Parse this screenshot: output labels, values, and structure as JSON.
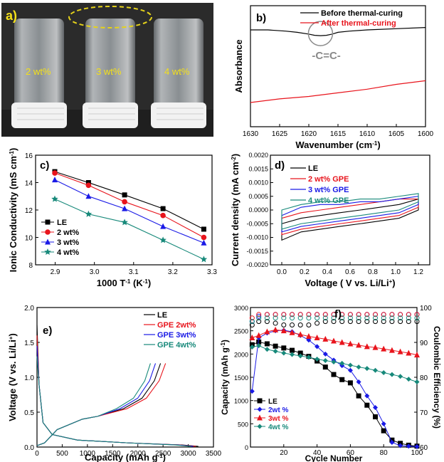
{
  "panel_a": {
    "label": "a)",
    "vial_labels": [
      "2 wt%",
      "3 wt%",
      "4 wt%"
    ]
  },
  "chart_data": [
    {
      "panel": "b)",
      "type": "line",
      "xlabel": "Wavenumber (cm",
      "xlabel_sup": "-1",
      "xlabel_end": ")",
      "ylabel": "Absorbance",
      "xlim": [
        1630,
        1600
      ],
      "xticks": [
        "1630",
        "1625",
        "1620",
        "1615",
        "1610",
        "1605",
        "1600"
      ],
      "annotation": "-C=C-",
      "series": [
        {
          "name": "Before thermal-curing",
          "color": "#000000",
          "x": [
            1630,
            1627,
            1624,
            1622,
            1620,
            1619,
            1618,
            1617,
            1616,
            1615,
            1613,
            1610,
            1605,
            1600
          ],
          "y": [
            0.8,
            0.8,
            0.79,
            0.78,
            0.765,
            0.755,
            0.752,
            0.755,
            0.765,
            0.78,
            0.79,
            0.8,
            0.81,
            0.82
          ]
        },
        {
          "name": "After thermal-curing",
          "color": "#e8141c",
          "x": [
            1630,
            1625,
            1620,
            1615,
            1610,
            1605,
            1600
          ],
          "y": [
            0.2,
            0.23,
            0.25,
            0.28,
            0.31,
            0.35,
            0.38
          ]
        }
      ]
    },
    {
      "panel": "c)",
      "type": "line",
      "xlabel": "1000 T",
      "xlabel_sup": "-1",
      "xlabel_end": " (K",
      "xlabel_sup2": "-1",
      "xlabel_end2": ")",
      "ylabel": "Ionic Conductivity (mS cm",
      "ylabel_sup": "-1",
      "ylabel_end": ")",
      "xlim": [
        2.85,
        3.3
      ],
      "ylim": [
        8,
        16
      ],
      "xticks": [
        "2.9",
        "3.0",
        "3.1",
        "3.2",
        "3.3"
      ],
      "yticks": [
        "8",
        "10",
        "12",
        "14",
        "16"
      ],
      "x": [
        2.899,
        2.985,
        3.077,
        3.175,
        3.279
      ],
      "series": [
        {
          "name": "LE",
          "color": "#000000",
          "marker": "square",
          "values": [
            14.8,
            14.0,
            13.1,
            12.1,
            10.6
          ]
        },
        {
          "name": "2 wt%",
          "color": "#e8141c",
          "marker": "circle",
          "values": [
            14.7,
            13.8,
            12.6,
            11.6,
            10.0
          ]
        },
        {
          "name": "3 wt%",
          "color": "#1a1ae6",
          "marker": "triangle",
          "values": [
            14.2,
            13.0,
            12.1,
            10.8,
            9.6
          ]
        },
        {
          "name": "4 wt%",
          "color": "#17897a",
          "marker": "star",
          "values": [
            12.8,
            11.7,
            11.1,
            9.8,
            8.4
          ]
        }
      ]
    },
    {
      "panel": "d)",
      "type": "line",
      "xlabel": "Voltage ( V vs. Li/Li",
      "xlabel_sup": "+",
      "xlabel_end": ")",
      "ylabel": "Current density (mA cm",
      "ylabel_sup": "-2",
      "ylabel_end": ")",
      "xlim": [
        -0.1,
        1.3
      ],
      "ylim": [
        -0.002,
        0.002
      ],
      "xticks": [
        "0.0",
        "0.2",
        "0.4",
        "0.6",
        "0.8",
        "1.0",
        "1.2"
      ],
      "yticks": [
        "-0.0020",
        "-0.0015",
        "-0.0010",
        "-0.0005",
        "0.0000",
        "0.0005",
        "0.0010",
        "0.0015",
        "0.0020"
      ],
      "series": [
        {
          "name": "LE",
          "color": "#000000",
          "top": [
            -0.0005,
            -0.0003,
            -0.0002,
            -0.0001,
            0.0,
            0.0001,
            0.0002,
            0.0004
          ],
          "bot": [
            -0.0011,
            -0.0008,
            -0.0007,
            -0.0006,
            -0.0005,
            -0.0004,
            -0.0003,
            0.0
          ]
        },
        {
          "name": "2 wt% GPE",
          "color": "#e8141c",
          "top": [
            -0.0003,
            -0.0001,
            0.0,
            0.0001,
            0.0002,
            0.0003,
            0.0004,
            0.0004
          ],
          "bot": [
            -0.0009,
            -0.0007,
            -0.0006,
            -0.0005,
            -0.0004,
            -0.0003,
            -0.0002,
            0.0001
          ]
        },
        {
          "name": "3 wt% GPE",
          "color": "#1a1ae6",
          "top": [
            -0.0002,
            0.0001,
            0.0002,
            0.0002,
            0.0003,
            0.0003,
            0.0004,
            0.0005
          ],
          "bot": [
            -0.0008,
            -0.0006,
            -0.0005,
            -0.0004,
            -0.0003,
            -0.0002,
            -0.0001,
            0.0002
          ]
        },
        {
          "name": "4 wt% GPE",
          "color": "#17897a",
          "top": [
            0.0,
            0.0002,
            0.0003,
            0.0003,
            0.0004,
            0.0004,
            0.0005,
            0.0006
          ],
          "bot": [
            -0.0007,
            -0.0005,
            -0.0004,
            -0.0003,
            -0.0002,
            -0.0001,
            0.0,
            0.0003
          ]
        }
      ],
      "x_samples": [
        0.0,
        0.17,
        0.34,
        0.51,
        0.69,
        0.86,
        1.03,
        1.2
      ]
    },
    {
      "panel": "e)",
      "type": "line",
      "xlabel": "Capacity (mAh g",
      "xlabel_sup": "-1",
      "xlabel_end": ")",
      "ylabel": "Voltage (V vs. Li/Li",
      "ylabel_sup": "+",
      "ylabel_end": ")",
      "xlim": [
        0,
        3500
      ],
      "ylim": [
        0.0,
        2.0
      ],
      "xticks": [
        "0",
        "500",
        "1000",
        "1500",
        "2000",
        "2500",
        "3000",
        "3500"
      ],
      "yticks": [
        "0.0",
        "0.5",
        "1.0",
        "1.5",
        "2.0"
      ],
      "series": [
        {
          "name": "LE",
          "color": "#000000",
          "charge_end": 2450,
          "discharge_end": 3200
        },
        {
          "name": "GPE 2wt%",
          "color": "#e8141c",
          "charge_end": 2550,
          "discharge_end": 3150
        },
        {
          "name": "GPE 3wt%",
          "color": "#1a1ae6",
          "charge_end": 2350,
          "discharge_end": 3100
        },
        {
          "name": "GPE 4wt%",
          "color": "#17897a",
          "charge_end": 2250,
          "discharge_end": 3050
        }
      ]
    },
    {
      "panel": "f)",
      "type": "scatter",
      "xlabel": "Cycle Number",
      "ylabel": "Capacity (mAh g",
      "ylabel_sup": "-1",
      "ylabel_end": ")",
      "y2label": "Coulombic Efficiency (%)",
      "xlim": [
        0,
        100
      ],
      "ylim": [
        0,
        3000
      ],
      "y2lim": [
        60,
        100
      ],
      "xticks": [
        "20",
        "40",
        "60",
        "80",
        "100"
      ],
      "yticks": [
        "0",
        "500",
        "1000",
        "1500",
        "2000",
        "2500",
        "3000"
      ],
      "y2ticks": [
        "60",
        "70",
        "80",
        "90",
        "100"
      ],
      "series": [
        {
          "name": "LE",
          "color": "#000000",
          "marker": "square",
          "x": [
            1,
            5,
            10,
            15,
            20,
            25,
            30,
            35,
            40,
            45,
            50,
            55,
            60,
            65,
            70,
            75,
            80,
            85,
            90,
            95,
            100
          ],
          "values": [
            2200,
            2260,
            2220,
            2170,
            2130,
            2080,
            2020,
            1950,
            1850,
            1720,
            1560,
            1450,
            1380,
            1100,
            900,
            650,
            350,
            150,
            80,
            40,
            20
          ],
          "ce": [
            95,
            96,
            96,
            95.5,
            95,
            95,
            95,
            95,
            95.5,
            96,
            96,
            96,
            96,
            96,
            96,
            96,
            96,
            96,
            96,
            96,
            96
          ]
        },
        {
          "name": "2wt %",
          "color": "#1a1ae6",
          "marker": "diamond",
          "x": [
            1,
            5,
            10,
            15,
            20,
            25,
            30,
            35,
            40,
            45,
            50,
            55,
            60,
            65,
            70,
            75,
            80,
            85,
            90,
            95,
            100
          ],
          "values": [
            1200,
            2350,
            2450,
            2500,
            2510,
            2480,
            2400,
            2300,
            2160,
            2000,
            1870,
            1750,
            1650,
            1400,
            1100,
            850,
            500,
            100,
            30,
            20,
            10
          ],
          "ce": [
            96,
            97.5,
            98,
            98,
            98,
            98,
            98,
            98,
            98,
            98,
            98,
            98,
            98,
            98,
            98,
            98,
            98,
            98,
            98,
            98,
            98
          ]
        },
        {
          "name": "3wt %",
          "color": "#e8141c",
          "marker": "triangle",
          "x": [
            1,
            5,
            10,
            15,
            20,
            25,
            30,
            35,
            40,
            45,
            50,
            55,
            60,
            65,
            70,
            75,
            80,
            85,
            90,
            95,
            100
          ],
          "values": [
            2350,
            2400,
            2480,
            2520,
            2500,
            2460,
            2420,
            2380,
            2350,
            2320,
            2280,
            2250,
            2220,
            2190,
            2160,
            2140,
            2110,
            2080,
            2050,
            2020,
            1980
          ],
          "ce": [
            97,
            98,
            98,
            98,
            98,
            98,
            98,
            98,
            98,
            98,
            98,
            98,
            98,
            98,
            98,
            98,
            98,
            98,
            98,
            98,
            98
          ]
        },
        {
          "name": "4wt %",
          "color": "#17897a",
          "marker": "diamond",
          "x": [
            1,
            5,
            10,
            15,
            20,
            25,
            30,
            35,
            40,
            45,
            50,
            55,
            60,
            65,
            70,
            75,
            80,
            85,
            90,
            95,
            100
          ],
          "values": [
            2150,
            2180,
            2100,
            2060,
            2020,
            1990,
            1960,
            1930,
            1890,
            1860,
            1830,
            1800,
            1760,
            1720,
            1690,
            1650,
            1600,
            1560,
            1520,
            1460,
            1400
          ],
          "ce": [
            96,
            97,
            97,
            97,
            97,
            97,
            97,
            97,
            97,
            97,
            97,
            97,
            97,
            97,
            97,
            97,
            97,
            97,
            97,
            97,
            97
          ]
        }
      ]
    }
  ]
}
